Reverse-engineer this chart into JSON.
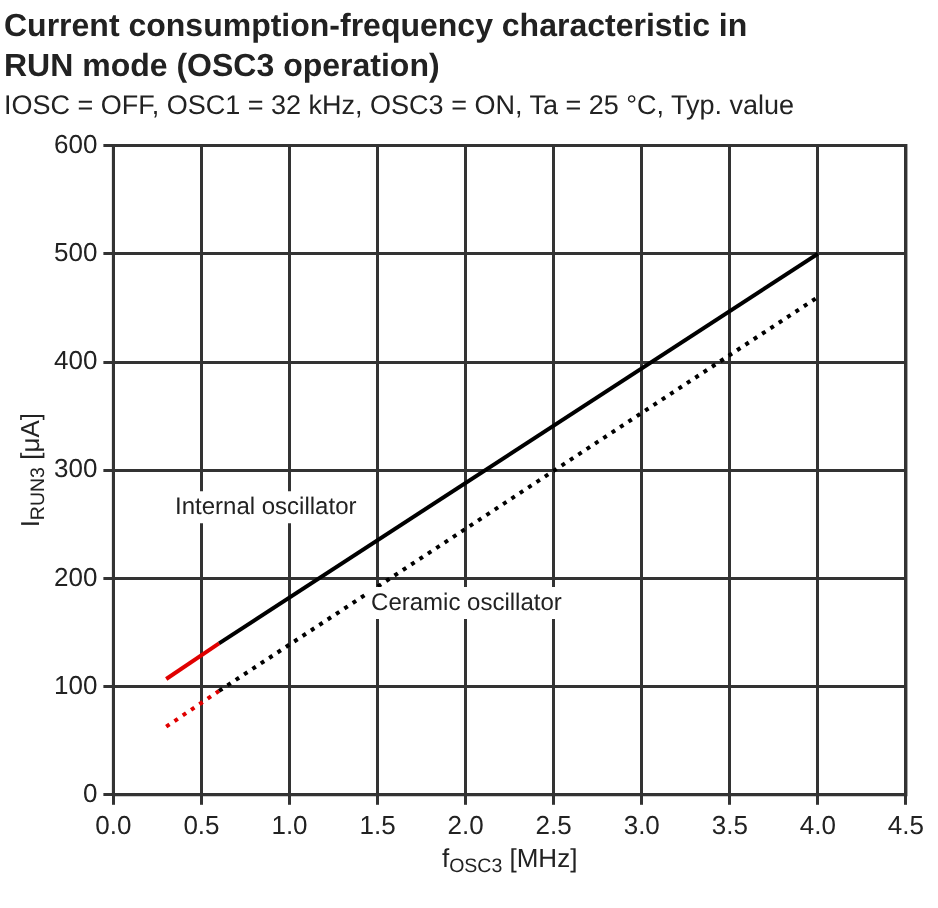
{
  "chart_data": {
    "type": "line",
    "title": "Current consumption-frequency characteristic in RUN mode (OSC3 operation)",
    "subtitle": "IOSC = OFF, OSC1 = 32 kHz, OSC3 = ON, Ta = 25 °C, Typ. value",
    "xlabel": "f$_{OSC3}$ [MHz]",
    "ylabel": "I$_{RUN3}$ [μA]",
    "series": [
      {
        "name": "Internal oscillator",
        "color": "#000000",
        "line_style": "solid",
        "x": [
          0.6,
          4.0
        ],
        "values": [
          140,
          500
        ]
      },
      {
        "color": "#e00000",
        "line_style": "solid",
        "x": [
          0.3,
          0.6
        ],
        "values": [
          107,
          140
        ]
      },
      {
        "name": "Ceramic oscillator",
        "color": "#000000",
        "line_style": "dotted",
        "x": [
          0.6,
          4.0
        ],
        "values": [
          96,
          460
        ]
      },
      {
        "color": "#e00000",
        "line_style": "dotted",
        "x": [
          0.3,
          0.6
        ],
        "values": [
          63,
          96
        ]
      }
    ],
    "xlim": [
      0,
      4.5
    ],
    "xticks": [
      {
        "value": 0,
        "label": "0.0"
      },
      {
        "value": 0.5,
        "label": "0.5"
      },
      {
        "value": 1,
        "label": "1.0"
      },
      {
        "value": 1.5,
        "label": "1.5"
      },
      {
        "value": 2,
        "label": "2.0"
      },
      {
        "value": 2.5,
        "label": "2.5"
      },
      {
        "value": 3,
        "label": "3.0"
      },
      {
        "value": 3.5,
        "label": "3.5"
      },
      {
        "value": 4,
        "label": "4.0"
      },
      {
        "value": 4.5,
        "label": "4.5"
      }
    ],
    "ylim": [
      0,
      600
    ],
    "yticks": [
      0,
      100,
      200,
      300,
      400,
      500,
      600
    ],
    "grid": true,
    "legend": false,
    "marker": "none"
  }
}
